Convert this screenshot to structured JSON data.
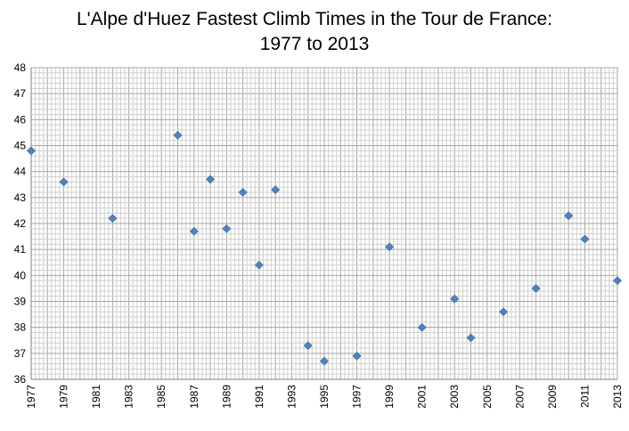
{
  "chart_data": {
    "type": "scatter",
    "title_line1": "L'Alpe d'Huez Fastest Climb Times in the Tour de France:",
    "title_line2": "1977 to 2013",
    "xlabel": "",
    "ylabel": "",
    "xlim": [
      1977,
      2013
    ],
    "ylim": [
      36,
      48
    ],
    "xticks": [
      1977,
      1979,
      1981,
      1983,
      1985,
      1987,
      1989,
      1991,
      1993,
      1995,
      1997,
      1999,
      2001,
      2003,
      2005,
      2007,
      2009,
      2011,
      2013
    ],
    "yticks": [
      36,
      37,
      38,
      39,
      40,
      41,
      42,
      43,
      44,
      45,
      46,
      47,
      48
    ],
    "grid": "on",
    "marker_color": "#4F81BD",
    "points": [
      {
        "x": 1977,
        "y": 44.8
      },
      {
        "x": 1979,
        "y": 43.6
      },
      {
        "x": 1982,
        "y": 42.2
      },
      {
        "x": 1986,
        "y": 45.4
      },
      {
        "x": 1987,
        "y": 41.7
      },
      {
        "x": 1988,
        "y": 43.7
      },
      {
        "x": 1989,
        "y": 41.8
      },
      {
        "x": 1990,
        "y": 43.2
      },
      {
        "x": 1991,
        "y": 40.4
      },
      {
        "x": 1992,
        "y": 43.3
      },
      {
        "x": 1994,
        "y": 37.3
      },
      {
        "x": 1995,
        "y": 36.7
      },
      {
        "x": 1997,
        "y": 36.9
      },
      {
        "x": 1999,
        "y": 41.1
      },
      {
        "x": 2001,
        "y": 38.0
      },
      {
        "x": 2003,
        "y": 39.1
      },
      {
        "x": 2004,
        "y": 37.6
      },
      {
        "x": 2006,
        "y": 38.6
      },
      {
        "x": 2008,
        "y": 39.5
      },
      {
        "x": 2010,
        "y": 42.3
      },
      {
        "x": 2011,
        "y": 41.4
      },
      {
        "x": 2013,
        "y": 39.8
      }
    ]
  }
}
